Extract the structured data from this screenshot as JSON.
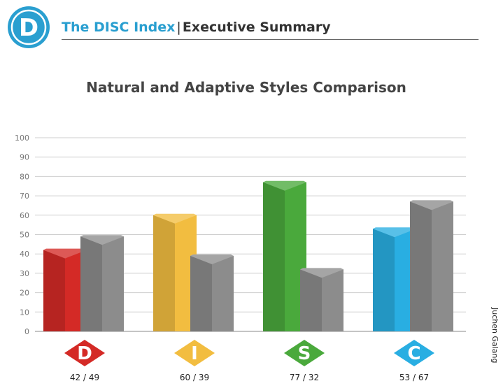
{
  "header": {
    "logo_letter": "D",
    "brand": "The DISC Index",
    "separator": "|",
    "subtitle": "Executive Summary"
  },
  "credit": "Juchen Galang",
  "colors": {
    "brand": "#2a9fd0",
    "D": "#d42a26",
    "I": "#f2bd40",
    "S": "#4aa93c",
    "C": "#29aee2",
    "adaptive": "#8c8c8c"
  },
  "chart_data": {
    "type": "bar",
    "title": "Natural and Adaptive Styles Comparison",
    "categories": [
      "D",
      "I",
      "S",
      "C"
    ],
    "series": [
      {
        "values": [
          42,
          60,
          77,
          53
        ]
      },
      {
        "values": [
          49,
          39,
          32,
          67
        ]
      }
    ],
    "value_labels": [
      "42 / 49",
      "60 / 39",
      "77 / 32",
      "53 / 67"
    ],
    "ylim": [
      0,
      100
    ],
    "yticks": [
      0,
      10,
      20,
      30,
      40,
      50,
      60,
      70,
      80,
      90,
      100
    ],
    "grid": true,
    "xlabel": "",
    "ylabel": ""
  }
}
